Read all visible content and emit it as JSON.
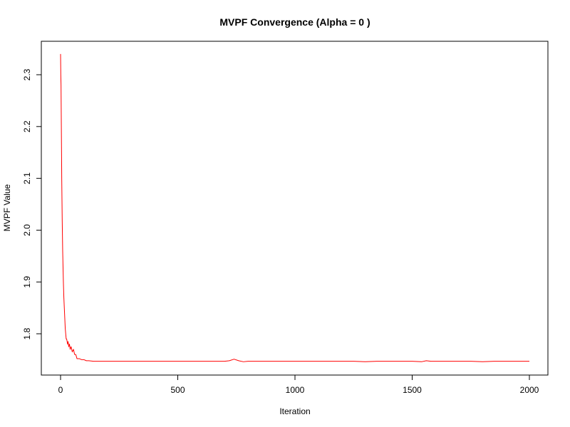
{
  "chart_data": {
    "type": "line",
    "title": "MVPF Convergence (Alpha = 0 )",
    "xlabel": "Iteration",
    "ylabel": "MVPF Value",
    "xlim": [
      0,
      2000
    ],
    "ylim": [
      1.74,
      2.34
    ],
    "x_ticks": [
      0,
      500,
      1000,
      1500,
      2000
    ],
    "x_tick_labels": [
      "0",
      "500",
      "1000",
      "1500",
      "2000"
    ],
    "y_ticks": [
      1.8,
      1.9,
      2.0,
      2.1,
      2.2,
      2.3
    ],
    "y_tick_labels": [
      "1.8",
      "1.9",
      "2.0",
      "2.1",
      "2.2",
      "2.3"
    ],
    "grid": false,
    "legend": "none",
    "series": [
      {
        "color": "#ff0000",
        "x": [
          0,
          1,
          2,
          3,
          4,
          5,
          6,
          7,
          8,
          9,
          10,
          12,
          14,
          16,
          18,
          20,
          22,
          24,
          26,
          28,
          30,
          32,
          35,
          38,
          41,
          45,
          50,
          55,
          60,
          65,
          70,
          80,
          90,
          100,
          110,
          120,
          140,
          160,
          180,
          200,
          230,
          260,
          300,
          350,
          400,
          450,
          500,
          550,
          600,
          650,
          700,
          720,
          740,
          760,
          780,
          800,
          850,
          900,
          950,
          1000,
          1050,
          1100,
          1150,
          1200,
          1250,
          1300,
          1350,
          1400,
          1450,
          1500,
          1540,
          1560,
          1580,
          1600,
          1650,
          1700,
          1750,
          1800,
          1850,
          1900,
          1950,
          2000
        ],
        "y": [
          2.34,
          2.3,
          2.28,
          2.22,
          2.16,
          2.1,
          2.06,
          2.02,
          1.99,
          1.96,
          1.94,
          1.9,
          1.87,
          1.85,
          1.83,
          1.81,
          1.8,
          1.79,
          1.79,
          1.785,
          1.78,
          1.785,
          1.775,
          1.78,
          1.77,
          1.775,
          1.765,
          1.77,
          1.76,
          1.76,
          1.752,
          1.752,
          1.75,
          1.75,
          1.748,
          1.748,
          1.747,
          1.747,
          1.747,
          1.747,
          1.747,
          1.747,
          1.747,
          1.747,
          1.747,
          1.747,
          1.747,
          1.747,
          1.747,
          1.747,
          1.747,
          1.748,
          1.751,
          1.748,
          1.746,
          1.747,
          1.747,
          1.747,
          1.747,
          1.747,
          1.747,
          1.747,
          1.747,
          1.747,
          1.747,
          1.746,
          1.747,
          1.747,
          1.747,
          1.747,
          1.746,
          1.748,
          1.747,
          1.747,
          1.747,
          1.747,
          1.747,
          1.746,
          1.747,
          1.747,
          1.747,
          1.747
        ]
      }
    ]
  }
}
